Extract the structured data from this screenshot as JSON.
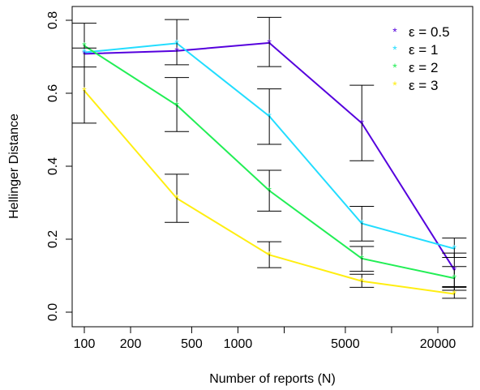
{
  "chart_data": {
    "type": "line",
    "xlabel": "Number of reports (N)",
    "ylabel": "Hellinger Distance",
    "x_scale": "log",
    "xlim": [
      100,
      20000
    ],
    "ylim": [
      0,
      0.8
    ],
    "x_ticks": [
      100,
      200,
      500,
      1000,
      5000,
      20000
    ],
    "x_tick_labels": [
      "100",
      "200",
      "500",
      "1000",
      "5000",
      "20000"
    ],
    "y_ticks": [
      0,
      0.2,
      0.4,
      0.6,
      0.8
    ],
    "y_tick_labels": [
      "0.0",
      "0.2",
      "0.4",
      "0.6",
      "0.8"
    ],
    "x": [
      100,
      400,
      1600,
      6400,
      25600
    ],
    "legend_position": "top-right",
    "grid": false,
    "series": [
      {
        "name": "ε = 0.5",
        "color": "#5500dd",
        "values": [
          0.708,
          0.716,
          0.738,
          0.518,
          0.116
        ]
      },
      {
        "name": "ε = 1",
        "color": "#22ddff",
        "values": [
          0.712,
          0.737,
          0.537,
          0.243,
          0.174
        ]
      },
      {
        "name": "ε = 2",
        "color": "#22ee55",
        "values": [
          0.73,
          0.567,
          0.333,
          0.147,
          0.093
        ]
      },
      {
        "name": "ε = 3",
        "color": "#ffee11",
        "values": [
          0.607,
          0.312,
          0.157,
          0.085,
          0.05
        ]
      }
    ],
    "error_bars": [
      {
        "x": 100,
        "low": 0.518,
        "high": 0.792
      },
      {
        "x": 100,
        "low": 0.672,
        "high": 0.724
      },
      {
        "x": 400,
        "low": 0.678,
        "high": 0.802
      },
      {
        "x": 400,
        "low": 0.495,
        "high": 0.643
      },
      {
        "x": 400,
        "low": 0.246,
        "high": 0.378
      },
      {
        "x": 1600,
        "low": 0.673,
        "high": 0.808
      },
      {
        "x": 1600,
        "low": 0.46,
        "high": 0.612
      },
      {
        "x": 1600,
        "low": 0.277,
        "high": 0.389
      },
      {
        "x": 1600,
        "low": 0.122,
        "high": 0.193
      },
      {
        "x": 6400,
        "low": 0.415,
        "high": 0.622
      },
      {
        "x": 6400,
        "low": 0.195,
        "high": 0.29
      },
      {
        "x": 6400,
        "low": 0.112,
        "high": 0.18
      },
      {
        "x": 6400,
        "low": 0.068,
        "high": 0.104
      },
      {
        "x": 25600,
        "low": 0.07,
        "high": 0.162
      },
      {
        "x": 25600,
        "low": 0.15,
        "high": 0.203
      },
      {
        "x": 25600,
        "low": 0.06,
        "high": 0.125
      },
      {
        "x": 25600,
        "low": 0.038,
        "high": 0.068
      }
    ]
  }
}
